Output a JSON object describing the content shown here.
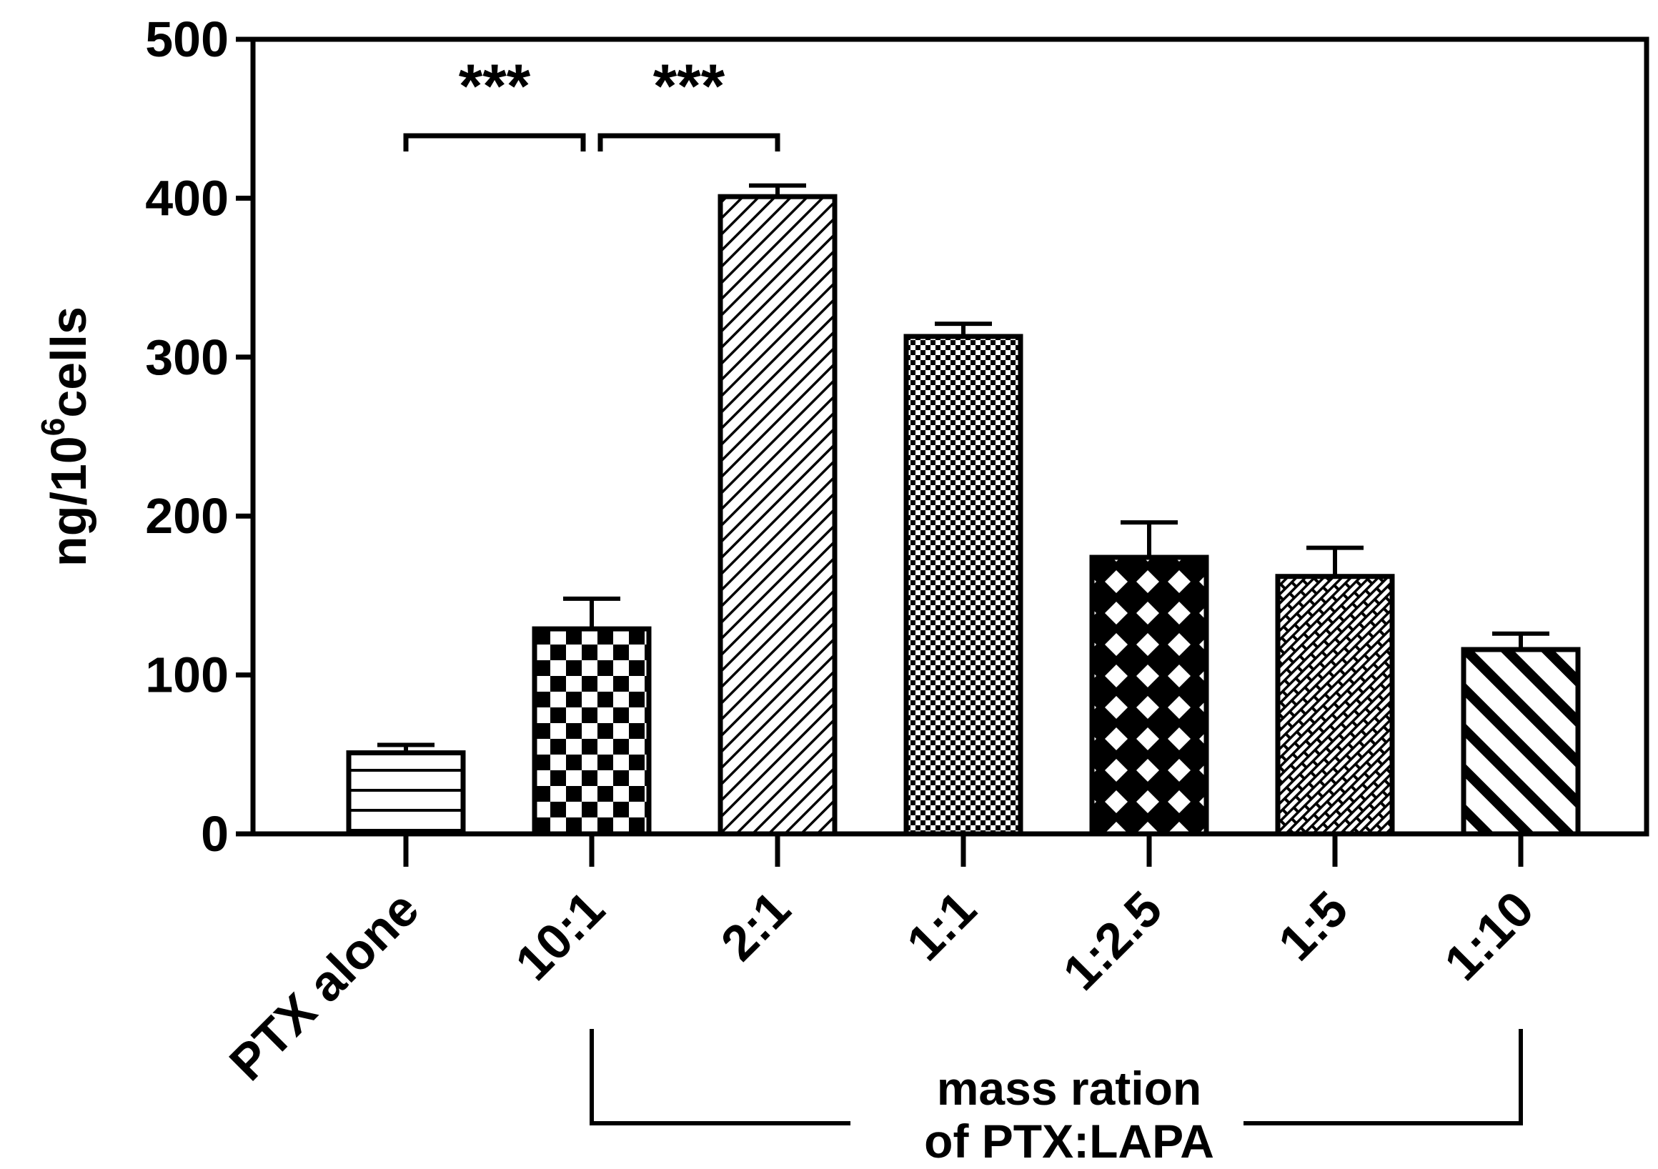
{
  "chart_data": {
    "type": "bar",
    "title": "",
    "xlabel": "",
    "ylabel": "ng/10⁶cells",
    "ylabel_parts": {
      "pre": "ng/10",
      "sup": "6",
      "post": "cells"
    },
    "ylim": [
      0,
      500
    ],
    "yticks": [
      0,
      100,
      200,
      300,
      400,
      500
    ],
    "ytick_labels": [
      "0",
      "100",
      "200",
      "300",
      "400",
      "500"
    ],
    "categories": [
      "PTX alone",
      "10:1",
      "2:1",
      "1:1",
      "1:2.5",
      "1:5",
      "1:10"
    ],
    "values": [
      51,
      129,
      401,
      313,
      174,
      162,
      116
    ],
    "errors": [
      5,
      19,
      7,
      8,
      22,
      18,
      10
    ],
    "patterns": [
      "hlines",
      "checker-large",
      "diag-fine-backslash",
      "checker-fine",
      "diamond-lattice",
      "brick-diag",
      "diag-bold-slash"
    ],
    "significance": [
      {
        "from": 0,
        "to": 1,
        "label": "***"
      },
      {
        "from": 1,
        "to": 2,
        "label": "***"
      }
    ],
    "group_bracket": {
      "from": 1,
      "to": 6,
      "label_lines": [
        "mass ration",
        "of PTX:LAPA"
      ]
    },
    "grid": false,
    "legend": "none"
  },
  "colors": {
    "ink": "#000000",
    "background": "#ffffff"
  }
}
